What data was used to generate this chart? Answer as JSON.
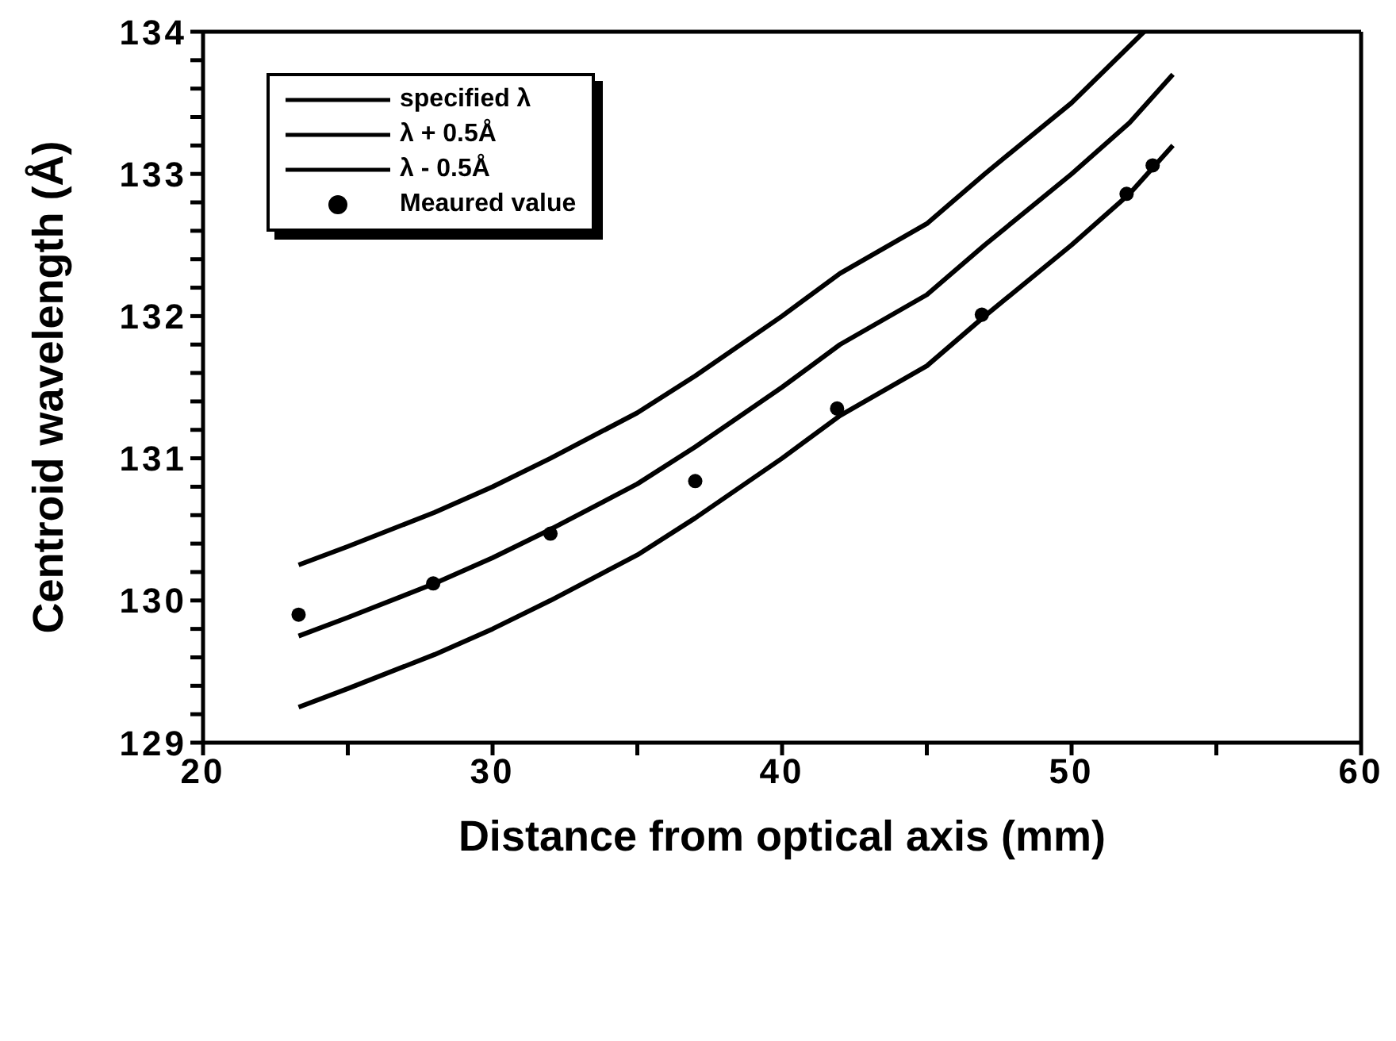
{
  "chart_data": {
    "type": "line",
    "xlabel": "Distance from optical axis (mm)",
    "ylabel": "Centroid wavelength (Å)",
    "xlim": [
      20,
      60
    ],
    "xticks": [
      20,
      {
        "value": 25,
        "label": null
      },
      30,
      {
        "value": 35,
        "label": null
      },
      40,
      {
        "value": 45,
        "label": null
      },
      50,
      {
        "value": 55,
        "label": null
      },
      60
    ],
    "ylim": [
      129,
      134
    ],
    "yticks": [
      129,
      {
        "value": 129.2,
        "label": null
      },
      {
        "value": 129.4,
        "label": null
      },
      {
        "value": 129.6,
        "label": null
      },
      {
        "value": 129.8,
        "label": null
      },
      130,
      {
        "value": 130.2,
        "label": null
      },
      {
        "value": 130.4,
        "label": null
      },
      {
        "value": 130.6,
        "label": null
      },
      {
        "value": 130.8,
        "label": null
      },
      131,
      {
        "value": 131.2,
        "label": null
      },
      {
        "value": 131.4,
        "label": null
      },
      {
        "value": 131.6,
        "label": null
      },
      {
        "value": 131.8,
        "label": null
      },
      132,
      {
        "value": 132.2,
        "label": null
      },
      {
        "value": 132.4,
        "label": null
      },
      {
        "value": 132.6,
        "label": null
      },
      {
        "value": 132.8,
        "label": null
      },
      133,
      {
        "value": 133.2,
        "label": null
      },
      {
        "value": 133.4,
        "label": null
      },
      {
        "value": 133.6,
        "label": null
      },
      {
        "value": 133.8,
        "label": null
      },
      134
    ],
    "legend": "top left",
    "marker": "none",
    "line_style": "solid",
    "series": [
      {
        "name": "specified λ",
        "color": "#000000",
        "x": [
          23.3,
          25,
          28,
          30,
          32,
          35,
          37,
          40,
          42,
          45,
          47,
          50,
          52,
          53.5
        ],
        "values": [
          129.75,
          129.88,
          130.12,
          130.3,
          130.5,
          130.82,
          131.08,
          131.5,
          131.8,
          132.15,
          132.5,
          133.0,
          133.36,
          133.7
        ]
      },
      {
        "name": "λ + 0.5Å",
        "color": "#000000",
        "x": [
          23.3,
          25,
          28,
          30,
          32,
          35,
          37,
          40,
          42,
          45,
          47,
          50,
          52.5
        ],
        "values": [
          130.25,
          130.38,
          130.62,
          130.8,
          131.0,
          131.32,
          131.58,
          132.0,
          132.3,
          132.65,
          133.0,
          133.5,
          134.0
        ]
      },
      {
        "name": "λ - 0.5Å",
        "color": "#000000",
        "x": [
          23.3,
          25,
          28,
          30,
          32,
          35,
          37,
          40,
          42,
          45,
          47,
          50,
          52,
          53.5
        ],
        "values": [
          129.25,
          129.38,
          129.62,
          129.8,
          130.0,
          130.32,
          130.58,
          131.0,
          131.3,
          131.65,
          132.0,
          132.5,
          132.86,
          133.2
        ]
      },
      {
        "name": "Meaured value",
        "type": "scatter",
        "marker": "circle",
        "color": "#000000",
        "x": [
          23.3,
          27.95,
          32,
          37,
          41.9,
          46.9,
          51.9,
          52.8
        ],
        "values": [
          129.9,
          130.12,
          130.47,
          130.84,
          131.35,
          132.01,
          132.86,
          133.06
        ]
      }
    ]
  }
}
